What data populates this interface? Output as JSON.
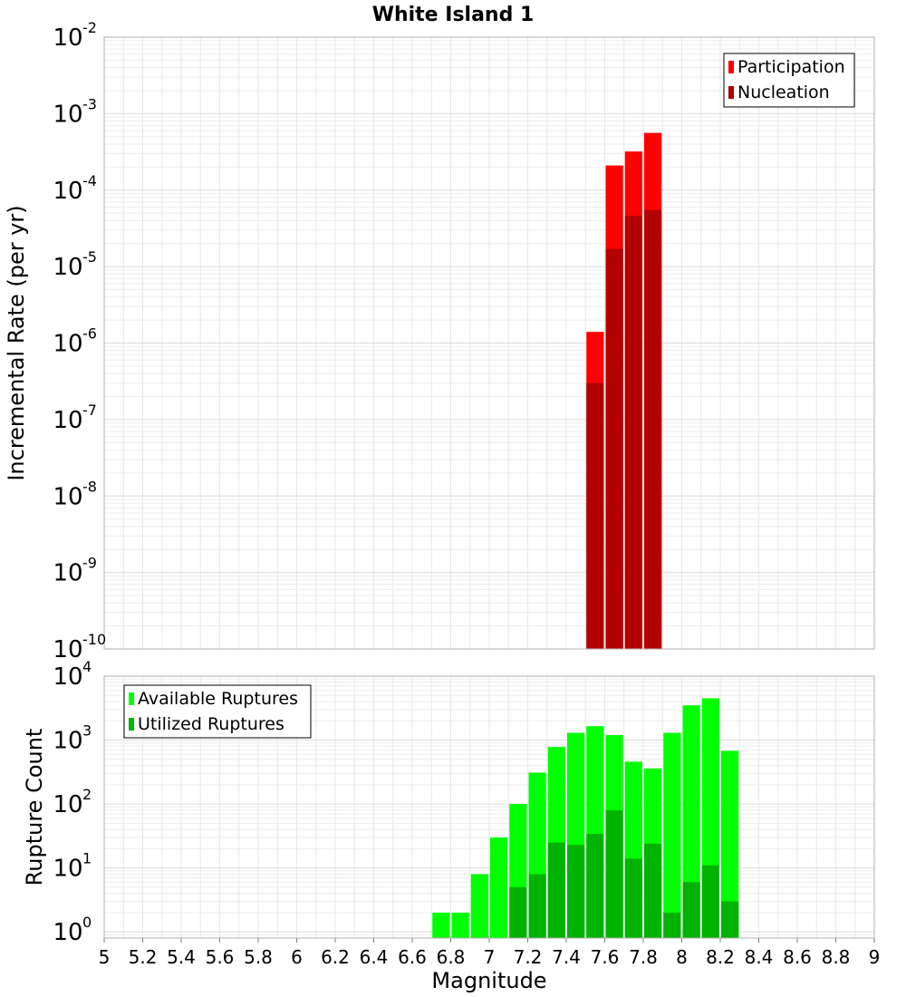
{
  "title": "White Island 1",
  "chart_data": [
    {
      "type": "bar",
      "title": "White Island 1",
      "ylabel": "Incremental Rate (per yr)",
      "xlabel": "",
      "yscale": "log",
      "ylim": [
        1e-10,
        0.01
      ],
      "xlim": [
        5,
        9
      ],
      "ytick_exponents": [
        -2,
        -3,
        -4,
        -5,
        -6,
        -7,
        -8,
        -9,
        -10
      ],
      "legend": {
        "placement": "top-right",
        "entries": [
          "Participation",
          "Nucleation"
        ]
      },
      "grid": true,
      "x": [
        7.55,
        7.65,
        7.75,
        7.85
      ],
      "series": [
        {
          "name": "Participation",
          "color": "#ff0000",
          "values": [
            1.4e-06,
            0.00021,
            0.00032,
            0.00056
          ]
        },
        {
          "name": "Nucleation",
          "color": "#b30000",
          "values": [
            3e-07,
            1.7e-05,
            4.6e-05,
            5.5e-05
          ]
        }
      ]
    },
    {
      "type": "bar",
      "title": "",
      "ylabel": "Rupture Count",
      "xlabel": "Magnitude",
      "yscale": "log",
      "ylim": [
        0.8,
        10000.0
      ],
      "xlim": [
        5,
        9
      ],
      "ytick_exponents": [
        4,
        3,
        2,
        1,
        0
      ],
      "xticks": [
        "5",
        "5.2",
        "5.4",
        "5.6",
        "5.8",
        "6",
        "6.2",
        "6.4",
        "6.6",
        "6.8",
        "7",
        "7.2",
        "7.4",
        "7.6",
        "7.8",
        "8",
        "8.2",
        "8.4",
        "8.6",
        "8.8",
        "9"
      ],
      "legend": {
        "placement": "top-left",
        "entries": [
          "Available Ruptures",
          "Utilized Ruptures"
        ]
      },
      "grid": true,
      "x": [
        6.75,
        6.85,
        6.95,
        7.05,
        7.15,
        7.25,
        7.35,
        7.45,
        7.55,
        7.65,
        7.75,
        7.85,
        7.95,
        8.05,
        8.15,
        8.25
      ],
      "series": [
        {
          "name": "Available Ruptures",
          "color": "#00ff00",
          "values": [
            2,
            2,
            8,
            30,
            100,
            310,
            780,
            1300,
            1650,
            1200,
            460,
            360,
            1300,
            3500,
            4500,
            680
          ]
        },
        {
          "name": "Utilized Ruptures",
          "color": "#00b300",
          "values": [
            null,
            null,
            null,
            null,
            5,
            8,
            25,
            23,
            34,
            80,
            14,
            24,
            2,
            6,
            11,
            3
          ]
        }
      ]
    }
  ]
}
